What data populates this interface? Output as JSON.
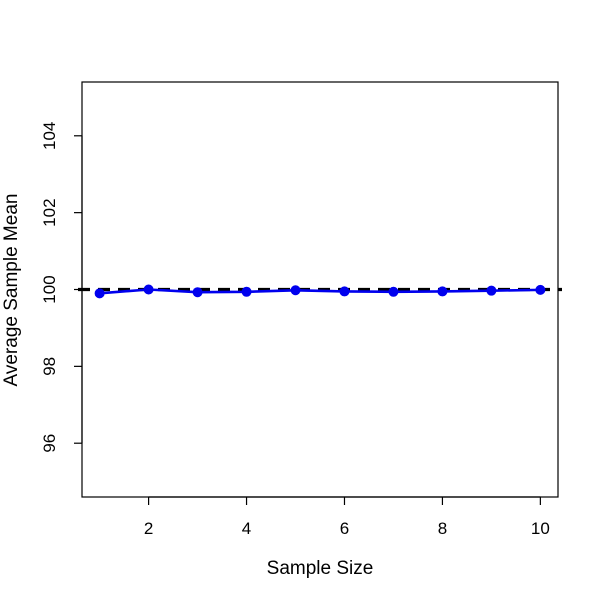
{
  "chart_data": {
    "type": "line",
    "title": "",
    "xlabel": "Sample Size",
    "ylabel": "Average Sample Mean",
    "x": [
      1,
      2,
      3,
      4,
      5,
      6,
      7,
      8,
      9,
      10
    ],
    "series": [
      {
        "values": [
          99.9,
          100.0,
          99.93,
          99.94,
          99.98,
          99.95,
          99.94,
          99.95,
          99.97,
          99.99
        ],
        "color": "#0000ee"
      }
    ],
    "reference_line": {
      "y": 100,
      "style": "dashed",
      "color": "#000000"
    },
    "xlim": [
      0.64,
      10.36
    ],
    "ylim": [
      94.6,
      105.4
    ],
    "xticks": [
      "2",
      "4",
      "6",
      "8",
      "10"
    ],
    "yticks": [
      "96",
      "98",
      "100",
      "102",
      "104"
    ],
    "grid": false,
    "legend": "none"
  }
}
